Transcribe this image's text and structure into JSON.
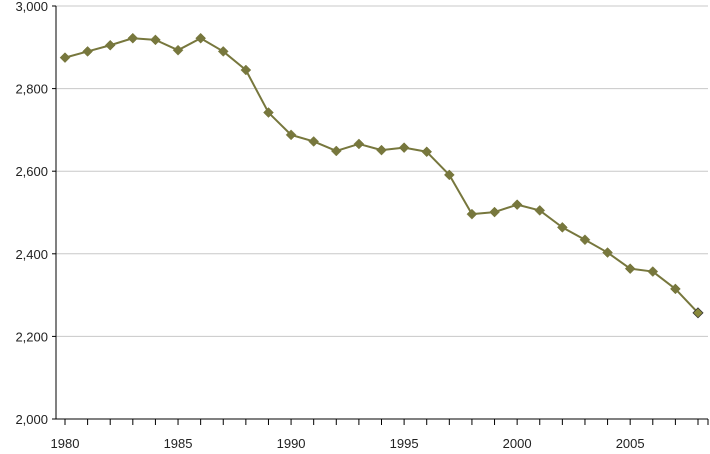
{
  "chart_data": {
    "type": "line",
    "title": "",
    "xlabel": "",
    "ylabel": "",
    "x": [
      1980,
      1981,
      1982,
      1983,
      1984,
      1985,
      1986,
      1987,
      1988,
      1989,
      1990,
      1991,
      1992,
      1993,
      1994,
      1995,
      1996,
      1997,
      1998,
      1999,
      2000,
      2001,
      2002,
      2003,
      2004,
      2005,
      2006,
      2007,
      2008
    ],
    "series": [
      {
        "values": [
          2875,
          2890,
          2905,
          2922,
          2918,
          2893,
          2922,
          2890,
          2845,
          2742,
          2688,
          2672,
          2649,
          2666,
          2651,
          2657,
          2647,
          2591,
          2496,
          2501,
          2519,
          2505,
          2464,
          2434,
          2403,
          2364,
          2357,
          2315,
          2257
        ],
        "color": "#77773d",
        "last_point_color": "#8a8a3c"
      }
    ],
    "xlim": [
      1980,
      2008
    ],
    "ylim": [
      2000,
      3000
    ],
    "x_ticks": [
      1980,
      1985,
      1990,
      1995,
      2000,
      2005
    ],
    "x_tick_labels": [
      "1980",
      "1985",
      "1990",
      "1995",
      "2000",
      "2005"
    ],
    "y_ticks": [
      2000,
      2200,
      2400,
      2600,
      2800,
      3000
    ],
    "y_tick_labels": [
      "2,000",
      "2,200",
      "2,400",
      "2,600",
      "2,800",
      "3,000"
    ],
    "grid": true,
    "marker": "diamond-icon",
    "legend": "none"
  }
}
